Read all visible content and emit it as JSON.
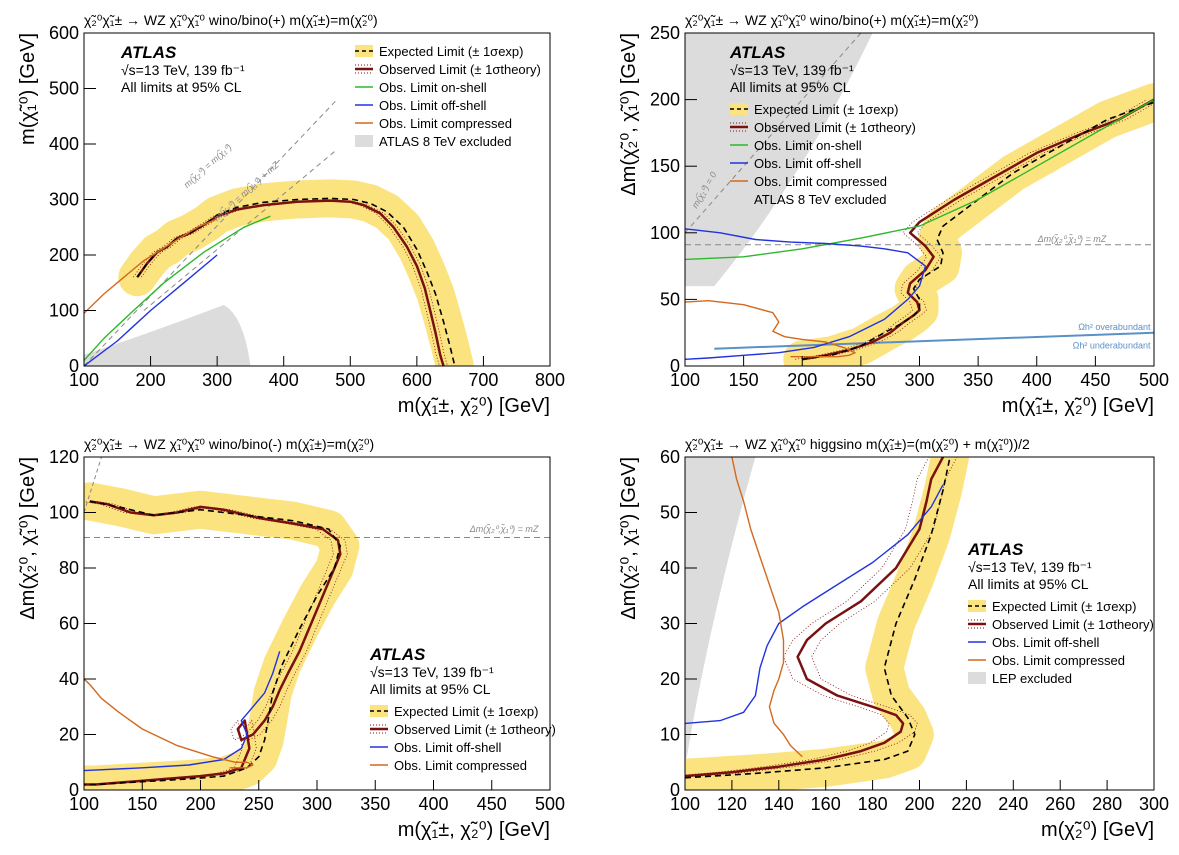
{
  "colors": {
    "band": "#fbe380",
    "observed": "#7a1010",
    "expected": "#000000",
    "onshell": "#2db82d",
    "offshell": "#2233dd",
    "compressed": "#d2691e",
    "excluded_gray": "#dcdcdc",
    "guide": "#888888",
    "relic": "#5a90c8"
  },
  "chart_data": [
    {
      "type": "line",
      "title": "χ̃₂⁰χ̃₁± → WZ χ̃₁⁰χ̃₁⁰ wino/bino(+) m(χ̃₁±)=m(χ̃₂⁰)",
      "xlabel": "m(χ̃₁±, χ̃₂⁰) [GeV]",
      "ylabel": "m(χ̃₁⁰) [GeV]",
      "xlim": [
        100,
        800
      ],
      "ylim": [
        0,
        600
      ],
      "xticks": [
        100,
        200,
        300,
        400,
        500,
        600,
        700,
        800
      ],
      "yticks": [
        0,
        100,
        200,
        300,
        400,
        500,
        600
      ],
      "atlas": "ATLAS",
      "info": [
        "√s=13 TeV, 139 fb⁻¹",
        "All limits at 95% CL"
      ],
      "legend": [
        "Expected Limit (± 1σexp)",
        "Observed Limit (± 1σtheory)",
        "Obs. Limit on-shell",
        "Obs. Limit off-shell",
        "Obs. Limit compressed",
        "ATLAS 8 TeV excluded"
      ],
      "annotations": [
        "m(χ̃₂⁰) = m(χ̃₁⁰)",
        "m(χ̃₂⁰) = m(χ̃₁⁰) + mZ"
      ],
      "series": [
        {
          "name": "Observed Limit",
          "x": [
            180,
            195,
            210,
            225,
            240,
            260,
            285,
            300,
            330,
            370,
            420,
            470,
            500,
            520,
            545,
            565,
            585,
            600,
            612,
            620,
            628,
            635,
            640
          ],
          "y": [
            160,
            185,
            205,
            215,
            230,
            240,
            258,
            270,
            282,
            290,
            296,
            298,
            296,
            290,
            275,
            250,
            215,
            180,
            140,
            100,
            60,
            20,
            0
          ]
        },
        {
          "name": "Expected Limit",
          "x": [
            180,
            195,
            210,
            225,
            240,
            260,
            285,
            300,
            330,
            370,
            420,
            470,
            505,
            530,
            555,
            580,
            600,
            615,
            628,
            640,
            650,
            657
          ],
          "y": [
            160,
            185,
            205,
            215,
            230,
            240,
            258,
            272,
            286,
            295,
            300,
            302,
            300,
            293,
            278,
            250,
            210,
            170,
            130,
            80,
            35,
            0
          ]
        },
        {
          "name": "Obs. Limit on-shell",
          "x": [
            100,
            130,
            170,
            220,
            280,
            340,
            380
          ],
          "y": [
            10,
            50,
            95,
            150,
            205,
            250,
            270
          ]
        },
        {
          "name": "Obs. Limit off-shell",
          "x": [
            100,
            150,
            200,
            250,
            300
          ],
          "y": [
            0,
            45,
            100,
            150,
            200
          ]
        },
        {
          "name": "Obs. Limit compressed",
          "x": [
            100,
            130,
            160,
            190,
            230,
            270,
            300
          ],
          "y": [
            95,
            130,
            160,
            190,
            220,
            250,
            265
          ]
        }
      ]
    },
    {
      "type": "line",
      "title": "χ̃₂⁰χ̃₁± → WZ χ̃₁⁰χ̃₁⁰ wino/bino(+) m(χ̃₁±)=m(χ̃₂⁰)",
      "xlabel": "m(χ̃₁±, χ̃₂⁰) [GeV]",
      "ylabel": "Δm(χ̃₂⁰, χ̃₁⁰) [GeV]",
      "xlim": [
        100,
        500
      ],
      "ylim": [
        0,
        250
      ],
      "xticks": [
        100,
        150,
        200,
        250,
        300,
        350,
        400,
        450,
        500
      ],
      "yticks": [
        0,
        50,
        100,
        150,
        200,
        250
      ],
      "atlas": "ATLAS",
      "info": [
        "√s=13 TeV, 139 fb⁻¹",
        "All limits at 95% CL"
      ],
      "legend": [
        "Expected Limit (± 1σexp)",
        "Observed Limit (± 1σtheory)",
        "Obs. Limit on-shell",
        "Obs. Limit off-shell",
        "Obs. Limit compressed",
        "ATLAS 8 TeV excluded"
      ],
      "annotations": [
        "m(χ̃₁⁰) = 0",
        "Δm(χ̃₂⁰,χ̃₁⁰) = mZ",
        "Ωh² overabundant",
        "Ωh² underabundant"
      ],
      "series": [
        {
          "name": "Observed Limit",
          "x": [
            200,
            220,
            240,
            260,
            275,
            285,
            295,
            300,
            298,
            290,
            292,
            305,
            312,
            305,
            292,
            300,
            330,
            360,
            400,
            440,
            470,
            500
          ],
          "y": [
            5,
            8,
            12,
            18,
            25,
            32,
            38,
            42,
            48,
            55,
            62,
            72,
            82,
            90,
            100,
            108,
            125,
            140,
            160,
            175,
            185,
            200
          ]
        },
        {
          "name": "Expected Limit",
          "x": [
            200,
            225,
            250,
            270,
            285,
            295,
            300,
            300,
            295,
            300,
            318,
            320,
            315,
            320,
            350,
            380,
            420,
            460,
            500
          ],
          "y": [
            5,
            8,
            15,
            25,
            32,
            38,
            42,
            50,
            58,
            65,
            75,
            85,
            95,
            105,
            125,
            145,
            165,
            185,
            198
          ]
        },
        {
          "name": "Obs. Limit on-shell",
          "x": [
            100,
            150,
            200,
            250,
            300,
            350,
            400,
            450,
            500
          ],
          "y": [
            80,
            82,
            88,
            96,
            105,
            125,
            150,
            175,
            200
          ]
        },
        {
          "name": "Obs. Limit off-shell",
          "x": [
            100,
            130,
            160,
            190,
            220,
            250,
            270,
            290,
            305,
            300,
            290,
            270,
            240,
            210,
            180,
            150,
            120,
            100
          ],
          "y": [
            103,
            100,
            95,
            93,
            92,
            90,
            88,
            85,
            75,
            60,
            50,
            35,
            22,
            14,
            10,
            8,
            6,
            5
          ]
        },
        {
          "name": "Obs. Limit compressed",
          "x": [
            100,
            120,
            150,
            175,
            180,
            175,
            185,
            200,
            220,
            235,
            245,
            240,
            230,
            210,
            190
          ],
          "y": [
            48,
            49,
            46,
            40,
            33,
            26,
            22,
            20,
            18,
            14,
            10,
            8,
            7,
            7,
            7
          ]
        }
      ]
    },
    {
      "type": "line",
      "title": "χ̃₂⁰χ̃₁± → WZ χ̃₁⁰χ̃₁⁰ wino/bino(-) m(χ̃₁±)=m(χ̃₂⁰)",
      "xlabel": "m(χ̃₁±, χ̃₂⁰) [GeV]",
      "ylabel": "Δm(χ̃₂⁰, χ̃₁⁰) [GeV]",
      "xlim": [
        100,
        500
      ],
      "ylim": [
        0,
        120
      ],
      "xticks": [
        100,
        150,
        200,
        250,
        300,
        350,
        400,
        450,
        500
      ],
      "yticks": [
        0,
        20,
        40,
        60,
        80,
        100,
        120
      ],
      "atlas": "ATLAS",
      "info": [
        "√s=13 TeV, 139 fb⁻¹",
        "All limits at 95% CL"
      ],
      "legend": [
        "Expected Limit (± 1σexp)",
        "Observed Limit (± 1σtheory)",
        "Obs. Limit off-shell",
        "Obs. Limit compressed"
      ],
      "annotations": [
        "Δm(χ̃₂⁰,χ̃₁⁰) = mZ"
      ],
      "series": [
        {
          "name": "Observed Limit",
          "x": [
            105,
            120,
            140,
            160,
            180,
            200,
            220,
            250,
            280,
            305,
            318,
            320,
            315,
            305,
            295,
            285,
            275,
            268,
            262,
            255,
            245,
            235,
            232,
            238,
            242,
            235,
            220,
            200,
            170,
            140,
            110,
            100
          ],
          "y": [
            104,
            103,
            100,
            99,
            100,
            102,
            101,
            98,
            96,
            94,
            90,
            85,
            80,
            70,
            60,
            50,
            42,
            36,
            30,
            25,
            20,
            18,
            22,
            25,
            15,
            8,
            6,
            5,
            4,
            3,
            2,
            2
          ]
        },
        {
          "name": "Expected Limit",
          "x": [
            105,
            130,
            160,
            200,
            240,
            280,
            310,
            320,
            315,
            300,
            285,
            270,
            262,
            258,
            255,
            250,
            240,
            220,
            190,
            150,
            110,
            100
          ],
          "y": [
            104,
            102,
            99,
            101,
            99,
            97,
            94,
            88,
            80,
            70,
            58,
            45,
            35,
            25,
            18,
            12,
            8,
            5,
            4,
            3,
            2,
            2
          ]
        },
        {
          "name": "Obs. Limit off-shell",
          "x": [
            100,
            150,
            190,
            220,
            235,
            240,
            235,
            245,
            255,
            262,
            268
          ],
          "y": [
            7,
            8,
            9,
            11,
            15,
            20,
            25,
            30,
            35,
            42,
            50
          ]
        },
        {
          "name": "Obs. Limit compressed",
          "x": [
            100,
            105,
            115,
            130,
            150,
            180,
            210,
            230,
            240,
            245,
            240,
            225
          ],
          "y": [
            40,
            38,
            33,
            28,
            22,
            16,
            12,
            10,
            10,
            9,
            8,
            8
          ]
        }
      ]
    },
    {
      "type": "line",
      "title": "χ̃₂⁰χ̃₁± → WZ χ̃₁⁰χ̃₁⁰ higgsino m(χ̃₁±)=(m(χ̃₂⁰) + m(χ̃₁⁰))/2",
      "xlabel": "m(χ̃₂⁰) [GeV]",
      "ylabel": "Δm(χ̃₂⁰, χ̃₁⁰) [GeV]",
      "xlim": [
        100,
        300
      ],
      "ylim": [
        0,
        60
      ],
      "xticks": [
        100,
        120,
        140,
        160,
        180,
        200,
        220,
        240,
        260,
        280,
        300
      ],
      "yticks": [
        0,
        10,
        20,
        30,
        40,
        50,
        60
      ],
      "atlas": "ATLAS",
      "info": [
        "√s=13 TeV, 139 fb⁻¹",
        "All limits at 95% CL"
      ],
      "legend": [
        "Expected Limit (± 1σexp)",
        "Observed Limit (± 1σtheory)",
        "Obs. Limit off-shell",
        "Obs. Limit compressed",
        "LEP excluded"
      ],
      "series": [
        {
          "name": "Observed Limit",
          "x": [
            100,
            120,
            140,
            160,
            175,
            185,
            192,
            193,
            190,
            180,
            165,
            152,
            148,
            152,
            160,
            175,
            190,
            200,
            203,
            205,
            210
          ],
          "y": [
            2.5,
            3.2,
            4.2,
            5.5,
            7,
            8.5,
            10.5,
            12,
            13.5,
            15,
            17,
            20,
            24,
            27,
            30,
            34,
            40,
            47,
            52,
            56,
            60
          ]
        },
        {
          "name": "Expected Limit",
          "x": [
            100,
            130,
            160,
            185,
            195,
            198,
            195,
            188,
            185,
            190,
            198,
            205,
            210,
            213
          ],
          "y": [
            2.2,
            3.0,
            4.0,
            5.5,
            7,
            10,
            13,
            17,
            22,
            30,
            38,
            46,
            54,
            60
          ]
        },
        {
          "name": "Obs. Limit off-shell",
          "x": [
            100,
            115,
            125,
            130,
            132,
            135,
            140,
            150,
            165,
            180,
            195,
            205,
            210
          ],
          "y": [
            12,
            12.5,
            14,
            17,
            22,
            26,
            30,
            33,
            37,
            41,
            46,
            51,
            55
          ]
        },
        {
          "name": "Obs. Limit compressed",
          "x": [
            120,
            122,
            125,
            128,
            132,
            136,
            140,
            142,
            142,
            140,
            138,
            136,
            138,
            142,
            145,
            150
          ],
          "y": [
            60,
            56,
            52,
            47,
            42,
            37,
            32,
            27,
            23,
            20,
            18,
            15,
            12,
            10,
            8,
            6
          ]
        }
      ]
    }
  ]
}
